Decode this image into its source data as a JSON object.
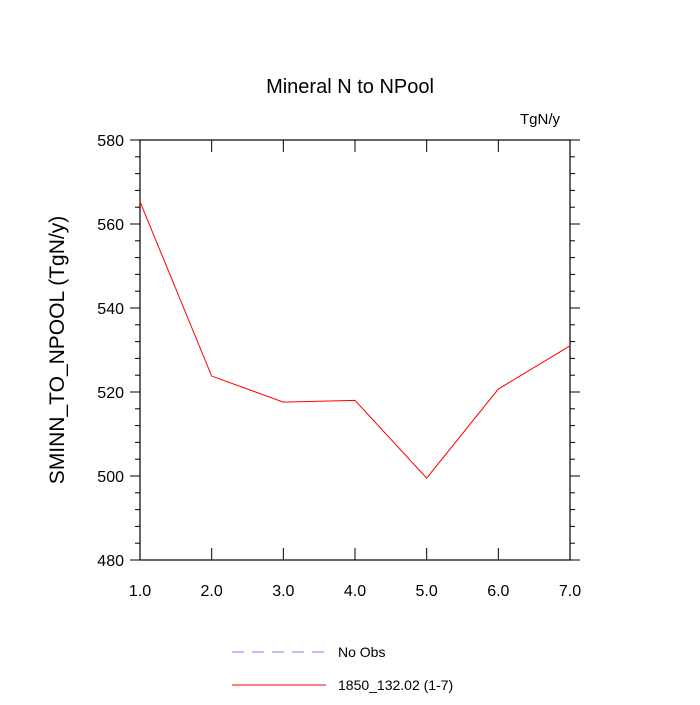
{
  "chart_data": {
    "type": "line",
    "title": "Mineral N to NPool",
    "units_label": "TgN/y",
    "xlabel": "",
    "ylabel": "SMINN_TO_NPOOL  (TgN/y)",
    "xlim": [
      1.0,
      7.0
    ],
    "ylim": [
      480,
      580
    ],
    "x_ticks": [
      1.0,
      2.0,
      3.0,
      4.0,
      5.0,
      6.0,
      7.0
    ],
    "x_tick_labels": [
      "1.0",
      "2.0",
      "3.0",
      "4.0",
      "5.0",
      "6.0",
      "7.0"
    ],
    "y_ticks": [
      480,
      500,
      520,
      540,
      560,
      580
    ],
    "y_tick_labels": [
      "480",
      "500",
      "520",
      "540",
      "560",
      "580"
    ],
    "grid": false,
    "legend_position": "bottom",
    "series": [
      {
        "name": "No Obs",
        "color": "#8080ff",
        "dash": "dashed",
        "x": [],
        "values": []
      },
      {
        "name": "1850_132.02 (1-7)",
        "color": "#ff0000",
        "dash": "solid",
        "x": [
          1.0,
          2.0,
          3.0,
          4.0,
          5.0,
          6.0,
          7.0
        ],
        "values": [
          565.3,
          523.8,
          517.6,
          518.0,
          499.5,
          520.7,
          531.0
        ]
      }
    ]
  }
}
